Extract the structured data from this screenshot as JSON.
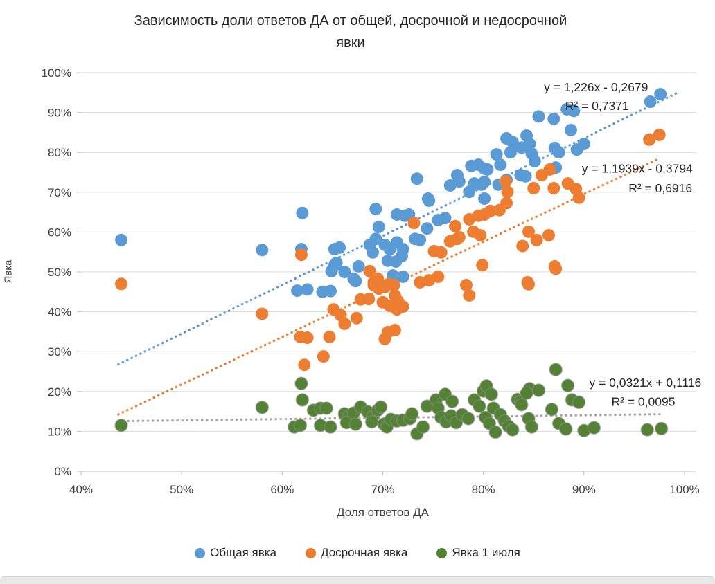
{
  "chart_data": {
    "type": "scatter",
    "title_line1": "Зависимость доли ответов ДА от общей, досрочной и недосрочной",
    "title_line2": "явки",
    "xlabel": "Доля ответов ДА",
    "ylabel": "Явка",
    "xlim": [
      40,
      100
    ],
    "ylim": [
      0,
      100
    ],
    "grid": "horizontal",
    "legend_position": "bottom",
    "x_tick_values": [
      40,
      50,
      60,
      70,
      80,
      90,
      100
    ],
    "x_tick_labels": [
      "40%",
      "50%",
      "60%",
      "70%",
      "80%",
      "90%",
      "100%"
    ],
    "y_tick_values": [
      0,
      10,
      20,
      30,
      40,
      50,
      60,
      70,
      80,
      90,
      100
    ],
    "y_tick_labels": [
      "0%",
      "10%",
      "20%",
      "30%",
      "40%",
      "50%",
      "60%",
      "70%",
      "80%",
      "90%",
      "100%"
    ],
    "colors": {
      "grid": "#d9d9d9",
      "axis": "#bfbfbf",
      "tick_text": "#404040",
      "label_text": "#262626"
    },
    "series": [
      {
        "name": "Общая явка",
        "color": "#5B9BD5",
        "points": [
          [
            44,
            58
          ],
          [
            58,
            55.5
          ],
          [
            61.5,
            45.3
          ],
          [
            62,
            64.8
          ],
          [
            61.9,
            55.7
          ],
          [
            62.5,
            45.6
          ],
          [
            64,
            45
          ],
          [
            64.8,
            45.2
          ],
          [
            64.9,
            50.2
          ],
          [
            65.2,
            51.7
          ],
          [
            65.4,
            52.3
          ],
          [
            65.2,
            55.7
          ],
          [
            65.7,
            56.1
          ],
          [
            66.2,
            50
          ],
          [
            67.3,
            47.7
          ],
          [
            67.6,
            51.4
          ],
          [
            67.1,
            48.3
          ],
          [
            68.7,
            56.8
          ],
          [
            69,
            54.9
          ],
          [
            69.3,
            65.8
          ],
          [
            69.3,
            58.3
          ],
          [
            69.6,
            61.3
          ],
          [
            70.2,
            56.8
          ],
          [
            70.5,
            52.8
          ],
          [
            70.7,
            55.7
          ],
          [
            71,
            49.1
          ],
          [
            71.3,
            52.6
          ],
          [
            71.4,
            57.4
          ],
          [
            71.4,
            64.4
          ],
          [
            72,
            48.8
          ],
          [
            72,
            55.7
          ],
          [
            71.9,
            54
          ],
          [
            72.2,
            64.1
          ],
          [
            72.6,
            64.4
          ],
          [
            73.4,
            73.4
          ],
          [
            73.2,
            58.3
          ],
          [
            73.7,
            58
          ],
          [
            74.4,
            60.9
          ],
          [
            74.5,
            68.4
          ],
          [
            74.6,
            67.9
          ],
          [
            75.5,
            63
          ],
          [
            76.2,
            63.5
          ],
          [
            76.7,
            71.7
          ],
          [
            77.4,
            74.3
          ],
          [
            77.6,
            72.7
          ],
          [
            78.6,
            70.1
          ],
          [
            78.8,
            76.6
          ],
          [
            79.5,
            76.9
          ],
          [
            80.4,
            75.7
          ],
          [
            79.1,
            72.2
          ],
          [
            79.8,
            71.9
          ],
          [
            80.1,
            75.9
          ],
          [
            80.1,
            72.6
          ],
          [
            80.1,
            68.4
          ],
          [
            81.3,
            79.5
          ],
          [
            81.5,
            71.9
          ],
          [
            81.7,
            76.9
          ],
          [
            82.3,
            73.1
          ],
          [
            82.3,
            83.5
          ],
          [
            82.7,
            80
          ],
          [
            82.9,
            82.6
          ],
          [
            83.7,
            74.3
          ],
          [
            83.8,
            81.2
          ],
          [
            84.2,
            74
          ],
          [
            84.3,
            84.2
          ],
          [
            84.6,
            82.1
          ],
          [
            84.8,
            79.7
          ],
          [
            85.1,
            77.8
          ],
          [
            85.5,
            89
          ],
          [
            87,
            88.4
          ],
          [
            87.1,
            81.1
          ],
          [
            87.2,
            76.2
          ],
          [
            87.5,
            80
          ],
          [
            88.3,
            90.8
          ],
          [
            89,
            90.4
          ],
          [
            88.7,
            85.6
          ],
          [
            89.3,
            80.7
          ],
          [
            90,
            82.1
          ],
          [
            96.6,
            92.7
          ],
          [
            97.6,
            94.6
          ]
        ],
        "trendline": {
          "slope": 1.226,
          "intercept": -0.2679,
          "x_start": 43.7,
          "x_end": 99.5,
          "color": "#5B9BD5",
          "equation": "y = 1,226x - 0,2679",
          "r2": "R² = 0,7371",
          "eq_pos": [
            91.2,
            95.3
          ],
          "r2_pos": [
            91.3,
            90.6
          ]
        }
      },
      {
        "name": "Досрочная явка",
        "color": "#ED7D31",
        "points": [
          [
            44,
            47
          ],
          [
            58,
            39.5
          ],
          [
            61.8,
            33.7
          ],
          [
            62.5,
            33.5
          ],
          [
            61.9,
            54.3
          ],
          [
            62.2,
            26.7
          ],
          [
            64.1,
            28.8
          ],
          [
            64.7,
            33.7
          ],
          [
            65.1,
            40.6
          ],
          [
            65.8,
            39.2
          ],
          [
            66.2,
            37
          ],
          [
            67.4,
            38.4
          ],
          [
            67.8,
            43.1
          ],
          [
            68.6,
            43.2
          ],
          [
            69.1,
            46.7
          ],
          [
            70.2,
            46.2
          ],
          [
            71.1,
            46.7
          ],
          [
            70,
            42.4
          ],
          [
            70.7,
            41.5
          ],
          [
            71.4,
            40.6
          ],
          [
            72,
            41.3
          ],
          [
            70.5,
            34.9
          ],
          [
            71.2,
            35.4
          ],
          [
            70.2,
            33.2
          ],
          [
            68.7,
            50.2
          ],
          [
            69.5,
            48.3
          ],
          [
            69.1,
            47.4
          ],
          [
            70.6,
            47
          ],
          [
            69.6,
            45.8
          ],
          [
            71.2,
            44.1
          ],
          [
            71.5,
            42.7
          ],
          [
            73.1,
            62.3
          ],
          [
            73.7,
            47.4
          ],
          [
            74.6,
            47.9
          ],
          [
            75.5,
            48.8
          ],
          [
            75.1,
            55.2
          ],
          [
            75.8,
            54.9
          ],
          [
            76.7,
            57.7
          ],
          [
            77.4,
            58.3
          ],
          [
            77.2,
            61.5
          ],
          [
            77.6,
            58.7
          ],
          [
            78.3,
            46.7
          ],
          [
            78.6,
            44.1
          ],
          [
            78.6,
            63.2
          ],
          [
            79.5,
            64.1
          ],
          [
            80.1,
            64.4
          ],
          [
            80.7,
            65.3
          ],
          [
            79,
            60.1
          ],
          [
            79.7,
            59.2
          ],
          [
            79.9,
            51.7
          ],
          [
            81.6,
            65.5
          ],
          [
            82.2,
            72.7
          ],
          [
            82.4,
            70.1
          ],
          [
            82.3,
            67.3
          ],
          [
            83.9,
            56.5
          ],
          [
            84.5,
            60.1
          ],
          [
            85.3,
            58
          ],
          [
            86.5,
            59.2
          ],
          [
            85,
            71
          ],
          [
            87,
            71
          ],
          [
            85.8,
            74.3
          ],
          [
            86.6,
            75.7
          ],
          [
            87.2,
            50.8
          ],
          [
            84.5,
            46.9
          ],
          [
            84.4,
            47.4
          ],
          [
            87.1,
            51.4
          ],
          [
            88.4,
            72.2
          ],
          [
            89.2,
            70.8
          ],
          [
            89.5,
            68.6
          ],
          [
            96.5,
            83.2
          ],
          [
            97.5,
            84.4
          ]
        ],
        "trendline": {
          "slope": 1.1939,
          "intercept": -0.3794,
          "x_start": 43.7,
          "x_end": 97.6,
          "color": "#ED7D31",
          "equation": "y = 1,1939x - 0,3794",
          "r2": "R² = 0,6916",
          "eq_pos": [
            95.3,
            74.9
          ],
          "r2_pos": [
            97.6,
            70.0
          ]
        }
      },
      {
        "name": "Явка 1 июля",
        "color": "#548235",
        "stroke": "#8c8c8c",
        "points": [
          [
            44,
            11.5
          ],
          [
            58,
            16
          ],
          [
            61.9,
            22
          ],
          [
            62,
            17.9
          ],
          [
            61.2,
            11.1
          ],
          [
            61.8,
            11.5
          ],
          [
            63.1,
            15.3
          ],
          [
            63.8,
            15.8
          ],
          [
            64.4,
            15.8
          ],
          [
            63.8,
            11.5
          ],
          [
            64.8,
            11.1
          ],
          [
            66.2,
            14.4
          ],
          [
            66.6,
            13.7
          ],
          [
            67.1,
            14.6
          ],
          [
            66.4,
            12.2
          ],
          [
            67.3,
            11.8
          ],
          [
            67.8,
            16.1
          ],
          [
            68.5,
            14.9
          ],
          [
            69,
            13.7
          ],
          [
            69.5,
            15.3
          ],
          [
            69.8,
            16.1
          ],
          [
            68.9,
            12.4
          ],
          [
            70.1,
            11.8
          ],
          [
            70.4,
            11.1
          ],
          [
            70.8,
            13
          ],
          [
            71.4,
            12.6
          ],
          [
            72,
            12.8
          ],
          [
            72.7,
            13.2
          ],
          [
            72.9,
            14.4
          ],
          [
            73.4,
            9.4
          ],
          [
            74,
            11.1
          ],
          [
            74.4,
            16.3
          ],
          [
            75.3,
            17.9
          ],
          [
            75.5,
            15.8
          ],
          [
            76.2,
            19.3
          ],
          [
            76.9,
            17.5
          ],
          [
            75.8,
            13.5
          ],
          [
            76.3,
            12.4
          ],
          [
            76.8,
            13.9
          ],
          [
            77.3,
            12.2
          ],
          [
            77.9,
            14.2
          ],
          [
            78.5,
            13.2
          ],
          [
            79.1,
            17.9
          ],
          [
            79.6,
            16.3
          ],
          [
            80,
            20.1
          ],
          [
            80.3,
            21.4
          ],
          [
            80.8,
            19.3
          ],
          [
            81,
            15.8
          ],
          [
            80.2,
            13.5
          ],
          [
            80.6,
            12
          ],
          [
            81.2,
            9.8
          ],
          [
            81.7,
            14.2
          ],
          [
            82.1,
            12.6
          ],
          [
            82.5,
            11.3
          ],
          [
            82.9,
            10.4
          ],
          [
            83.4,
            18
          ],
          [
            83.7,
            17.5
          ],
          [
            83.8,
            16.7
          ],
          [
            84.5,
            13.2
          ],
          [
            84.8,
            11.1
          ],
          [
            84.6,
            20.7
          ],
          [
            85.5,
            20.3
          ],
          [
            84.3,
            19.6
          ],
          [
            87.2,
            25.5
          ],
          [
            88.4,
            21.5
          ],
          [
            88.8,
            17.9
          ],
          [
            86.8,
            15.5
          ],
          [
            87.5,
            12
          ],
          [
            88.2,
            10.6
          ],
          [
            90,
            10.2
          ],
          [
            91,
            10.9
          ],
          [
            89.5,
            17.3
          ],
          [
            96.3,
            10.4
          ],
          [
            97.7,
            10.7
          ]
        ],
        "trendline": {
          "slope": 0.0321,
          "intercept": 0.1116,
          "x_start": 43.7,
          "x_end": 97.8,
          "color": "#a6a6a6",
          "equation": "y = 0,0321x + 0,1116",
          "r2": "R² = 0,0095",
          "eq_pos": [
            96.1,
            21.2
          ],
          "r2_pos": [
            95.9,
            16.4
          ]
        }
      }
    ]
  }
}
